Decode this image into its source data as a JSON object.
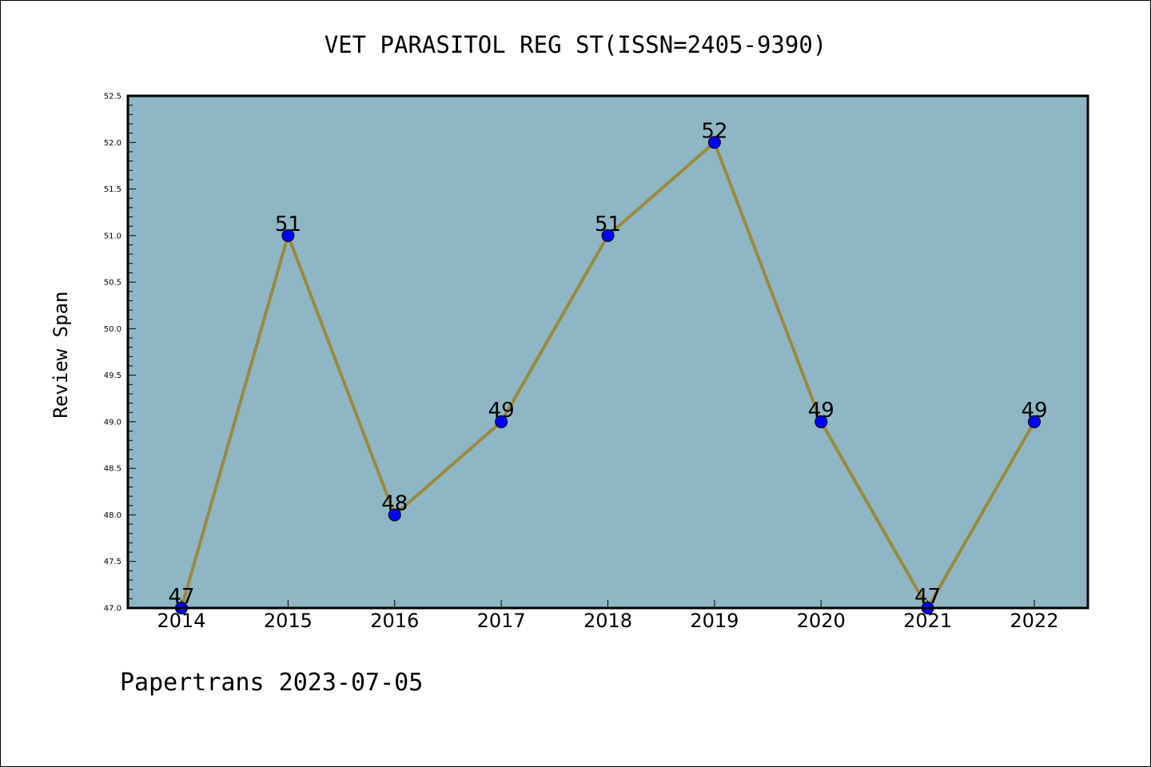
{
  "chart_data": {
    "type": "line",
    "title": "VET PARASITOL REG ST(ISSN=2405-9390)",
    "xlabel": "",
    "ylabel": "Review Span",
    "categories": [
      "2014",
      "2015",
      "2016",
      "2017",
      "2018",
      "2019",
      "2020",
      "2021",
      "2022"
    ],
    "series": [
      {
        "values": [
          47,
          51,
          48,
          49,
          51,
          52,
          49,
          47,
          49
        ]
      }
    ],
    "data_labels": [
      "47",
      "51",
      "48",
      "49",
      "51",
      "52",
      "49",
      "47",
      "49"
    ],
    "ylim": [
      47.0,
      52.5
    ],
    "yticks": [
      "47.0",
      "47.5",
      "48.0",
      "48.5",
      "49.0",
      "49.5",
      "50.0",
      "50.5",
      "51.0",
      "51.5",
      "52.0",
      "52.5"
    ],
    "grid": false,
    "legend": "none",
    "colors": {
      "plot_background": "#8fb6c4",
      "line": "#9a8a3c",
      "marker": "#0000ff",
      "axes": "#000000"
    }
  },
  "footer": {
    "text": "Papertrans 2023-07-05"
  }
}
